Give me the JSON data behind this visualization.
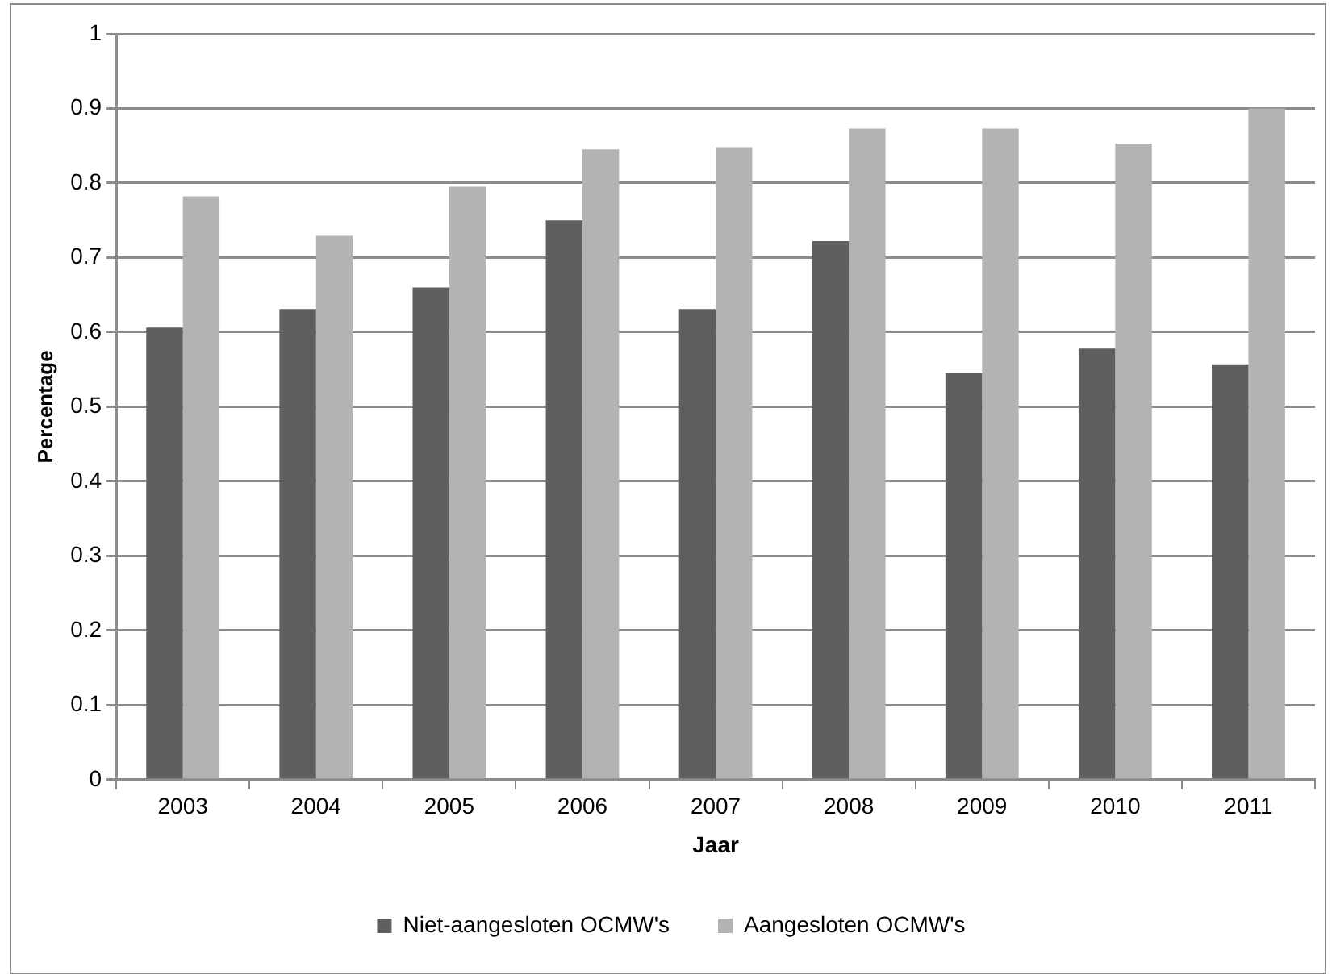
{
  "chart_data": {
    "type": "bar",
    "xlabel": "Jaar",
    "ylabel": "Percentage",
    "categories": [
      "2003",
      "2004",
      "2005",
      "2006",
      "2007",
      "2008",
      "2009",
      "2010",
      "2011"
    ],
    "series": [
      {
        "name": "Niet-aangesloten OCMW's",
        "color": "#5f5f5f",
        "values": [
          0.606,
          0.631,
          0.66,
          0.75,
          0.631,
          0.722,
          0.545,
          0.578,
          0.557
        ]
      },
      {
        "name": "Aangesloten OCMW's",
        "color": "#b3b3b3",
        "values": [
          0.782,
          0.729,
          0.795,
          0.845,
          0.848,
          0.873,
          0.873,
          0.853,
          0.9
        ]
      }
    ],
    "ylim": [
      0,
      1
    ],
    "yticks": [
      0,
      0.1,
      0.2,
      0.3,
      0.4,
      0.5,
      0.6,
      0.7,
      0.8,
      0.9,
      1
    ],
    "grid": "y",
    "legend": "bottom"
  }
}
